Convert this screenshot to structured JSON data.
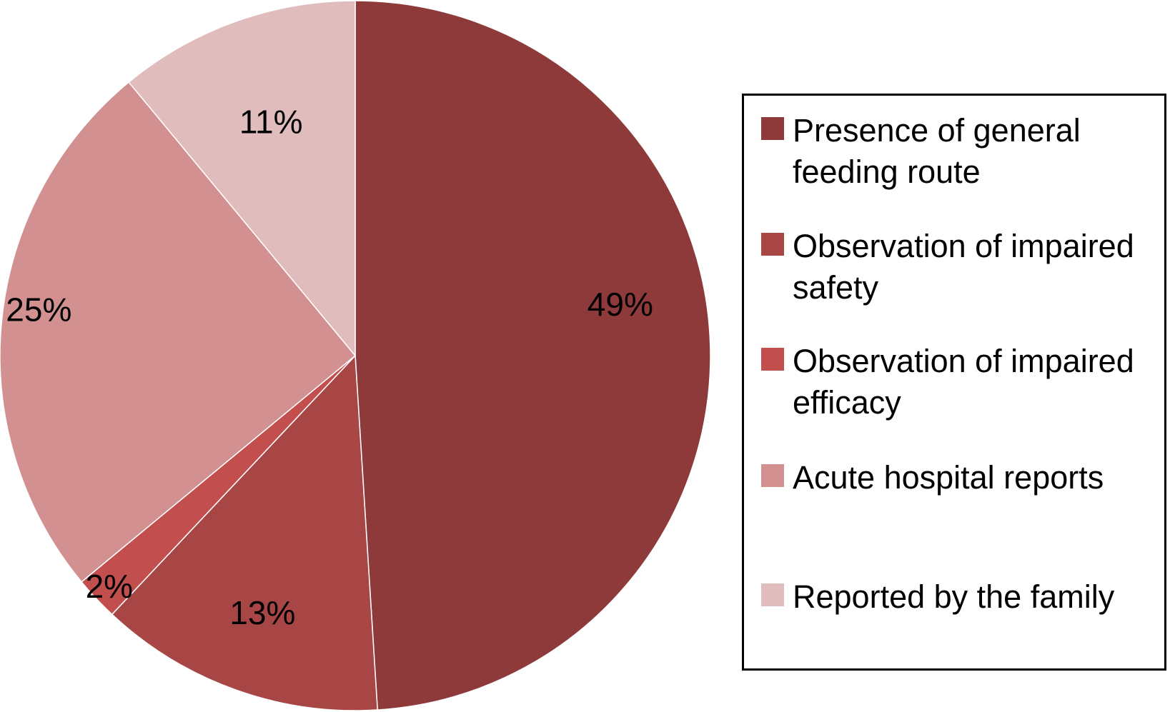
{
  "chart_data": {
    "type": "pie",
    "title": "",
    "labels": [
      "Presence of general feeding route",
      "Observation of impaired safety",
      "Observation of impaired efficacy",
      "Acute hospital reports",
      "Reported by the family"
    ],
    "values": [
      49,
      13,
      2,
      25,
      11
    ],
    "value_labels": [
      "49%",
      "13%",
      "2%",
      "25%",
      "11%"
    ],
    "colors": [
      "#8E3A3A",
      "#A84646",
      "#C24E4E",
      "#D29090",
      "#E0BCBC"
    ],
    "start_angle": "12 o'clock",
    "direction": "clockwise",
    "legend_position": "right",
    "legend_border": true
  }
}
